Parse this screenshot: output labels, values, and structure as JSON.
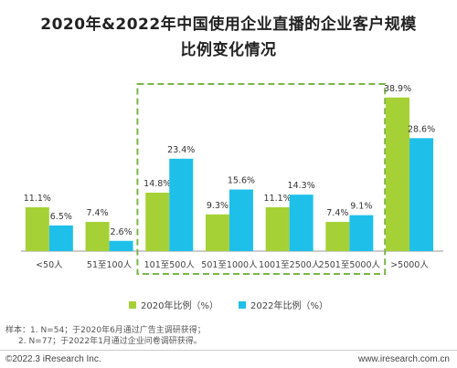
{
  "title_line1": "2020年&2022年中国使用企业直播的企业客户规模",
  "title_line2": "比例变化情况",
  "chart_data": {
    "type": "bar",
    "categories": [
      "<50人",
      "51至100人",
      "101至500人",
      "501至1000人",
      "1001至2500人",
      "2501至5000人",
      ">5000人"
    ],
    "series": [
      {
        "name": "2020年比例（%）",
        "color": "#a6d136",
        "values": [
          11.1,
          7.4,
          14.8,
          9.3,
          11.1,
          7.4,
          38.9
        ],
        "labels": [
          "11.1%",
          "7.4%",
          "14.8%",
          "9.3%",
          "11.1%",
          "7.4%",
          "38.9%"
        ]
      },
      {
        "name": "2022年比例（%）",
        "color": "#1ec0ea",
        "values": [
          6.5,
          2.6,
          23.4,
          15.6,
          14.3,
          9.1,
          28.6
        ],
        "labels": [
          "6.5%",
          "2.6%",
          "23.4%",
          "15.6%",
          "14.3%",
          "9.1%",
          "28.6%"
        ]
      }
    ],
    "ylim": [
      0,
      40
    ],
    "highlight": {
      "from_category": "101至500人",
      "to_category": "2501至5000人",
      "color": "#7ab648",
      "style": "dashed"
    }
  },
  "notes": {
    "line1": "样本：1. N=54；于2020年6月通过广告主调研获得；",
    "line2": "2. N=77；于2022年1月通过企业问卷调研获得。"
  },
  "footer": {
    "left": "©2022.3 iResearch Inc.",
    "right": "www.iresearch.com.cn"
  }
}
